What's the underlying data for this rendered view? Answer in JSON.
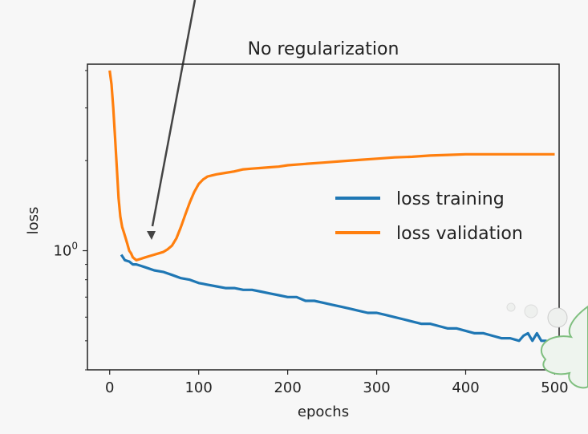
{
  "chart_data": {
    "type": "line",
    "title": "No regularization",
    "xlabel": "epochs",
    "ylabel": "loss",
    "xlim": [
      -25,
      505
    ],
    "ylim": [
      0.4,
      4.2
    ],
    "yscale": "log",
    "x_ticks": [
      0,
      100,
      200,
      300,
      400,
      500
    ],
    "x_tick_labels": [
      "0",
      "100",
      "200",
      "300",
      "400",
      "500"
    ],
    "y_tick_labels": [
      {
        "base": "10",
        "exp": "0",
        "value": 1.0
      }
    ],
    "grid": false,
    "legend_position": "center-right",
    "series": [
      {
        "name": "loss training",
        "color": "#1f77b4",
        "x": [
          13,
          17,
          22,
          26,
          30,
          35,
          40,
          50,
          60,
          70,
          80,
          90,
          100,
          110,
          120,
          130,
          140,
          150,
          160,
          170,
          180,
          190,
          200,
          210,
          220,
          230,
          240,
          250,
          260,
          270,
          280,
          290,
          300,
          310,
          320,
          330,
          340,
          350,
          360,
          370,
          380,
          390,
          400,
          410,
          420,
          430,
          440,
          450,
          460,
          465,
          470,
          475,
          480,
          485,
          490,
          495,
          500
        ],
        "values": [
          0.97,
          0.93,
          0.92,
          0.9,
          0.9,
          0.89,
          0.88,
          0.86,
          0.85,
          0.83,
          0.81,
          0.8,
          0.78,
          0.77,
          0.76,
          0.75,
          0.75,
          0.74,
          0.74,
          0.73,
          0.72,
          0.71,
          0.7,
          0.7,
          0.68,
          0.68,
          0.67,
          0.66,
          0.65,
          0.64,
          0.63,
          0.62,
          0.62,
          0.61,
          0.6,
          0.59,
          0.58,
          0.57,
          0.57,
          0.56,
          0.55,
          0.55,
          0.54,
          0.53,
          0.53,
          0.52,
          0.51,
          0.51,
          0.5,
          0.52,
          0.53,
          0.5,
          0.53,
          0.5,
          0.5,
          0.49,
          0.49
        ]
      },
      {
        "name": "loss validation",
        "color": "#ff7f0e",
        "x": [
          0,
          2,
          4,
          6,
          8,
          10,
          12,
          14,
          16,
          18,
          20,
          22,
          24,
          26,
          28,
          30,
          35,
          40,
          45,
          50,
          55,
          60,
          65,
          70,
          75,
          80,
          85,
          90,
          95,
          100,
          105,
          110,
          120,
          130,
          140,
          150,
          160,
          170,
          180,
          190,
          200,
          220,
          240,
          260,
          280,
          300,
          320,
          340,
          360,
          380,
          400,
          420,
          440,
          460,
          480,
          500
        ],
        "values": [
          4.0,
          3.6,
          3.0,
          2.4,
          1.9,
          1.5,
          1.3,
          1.2,
          1.15,
          1.1,
          1.05,
          1.0,
          0.98,
          0.95,
          0.94,
          0.93,
          0.94,
          0.95,
          0.96,
          0.97,
          0.98,
          0.99,
          1.01,
          1.04,
          1.1,
          1.2,
          1.32,
          1.45,
          1.57,
          1.67,
          1.73,
          1.77,
          1.8,
          1.82,
          1.84,
          1.87,
          1.88,
          1.89,
          1.9,
          1.91,
          1.93,
          1.95,
          1.97,
          1.99,
          2.01,
          2.03,
          2.05,
          2.06,
          2.08,
          2.09,
          2.1,
          2.1,
          2.1,
          2.1,
          2.1,
          2.1
        ]
      }
    ]
  }
}
